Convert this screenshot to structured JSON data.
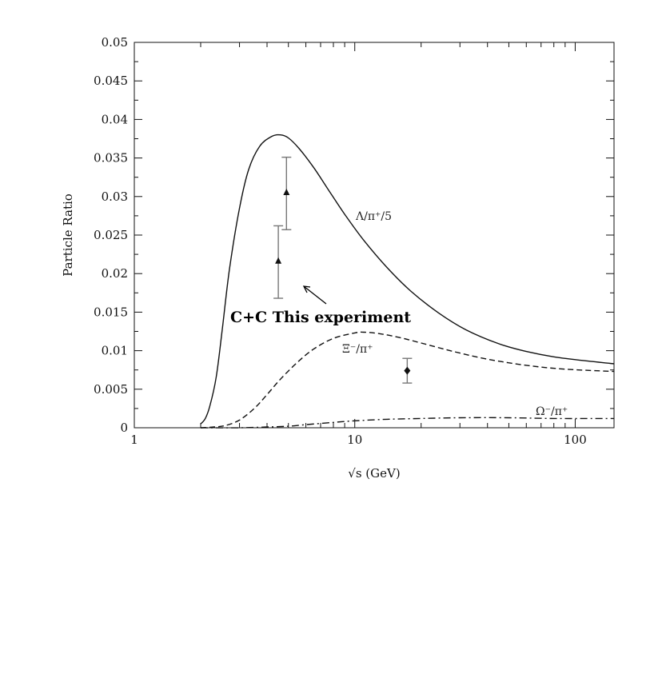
{
  "chart_data": {
    "type": "line",
    "title": "",
    "xlabel": "√s (GeV)",
    "ylabel": "Particle Ratio",
    "xscale": "log",
    "xlim": [
      1,
      150
    ],
    "ylim": [
      0,
      0.05
    ],
    "xticks": [
      {
        "value": 1,
        "label": "1"
      },
      {
        "value": 10,
        "label": "10"
      },
      {
        "value": 100,
        "label": "100"
      }
    ],
    "yticks": [
      {
        "value": 0,
        "label": "0"
      },
      {
        "value": 0.005,
        "label": "0.005"
      },
      {
        "value": 0.01,
        "label": "0.01"
      },
      {
        "value": 0.015,
        "label": "0.015"
      },
      {
        "value": 0.02,
        "label": "0.02"
      },
      {
        "value": 0.025,
        "label": "0.025"
      },
      {
        "value": 0.03,
        "label": "0.03"
      },
      {
        "value": 0.035,
        "label": "0.035"
      },
      {
        "value": 0.04,
        "label": "0.04"
      },
      {
        "value": 0.045,
        "label": "0.045"
      },
      {
        "value": 0.05,
        "label": "0.05"
      }
    ],
    "grid": false,
    "series": [
      {
        "name": "Λ/π⁺/5",
        "style": "solid",
        "x": [
          2.0,
          2.1,
          2.2,
          2.35,
          2.5,
          2.7,
          3.0,
          3.3,
          3.7,
          4.2,
          4.6,
          5.0,
          5.6,
          6.5,
          7.5,
          9,
          11,
          14,
          18,
          24,
          32,
          45,
          60,
          80,
          110,
          150
        ],
        "y": [
          0.0005,
          0.0012,
          0.0028,
          0.0065,
          0.0125,
          0.0205,
          0.0285,
          0.0335,
          0.0365,
          0.0378,
          0.038,
          0.0376,
          0.0362,
          0.0338,
          0.0311,
          0.0277,
          0.0243,
          0.0208,
          0.0177,
          0.0149,
          0.0127,
          0.0109,
          0.0099,
          0.0092,
          0.0087,
          0.0083
        ]
      },
      {
        "name": "Ξ⁻/π⁺",
        "style": "dashed",
        "x": [
          2.0,
          2.3,
          2.6,
          3.0,
          3.5,
          4.0,
          4.6,
          5.5,
          6.5,
          8,
          10,
          11,
          13,
          16,
          20,
          28,
          40,
          60,
          90,
          150
        ],
        "y": [
          0.0,
          0.0001,
          0.0003,
          0.001,
          0.0025,
          0.0043,
          0.0063,
          0.0085,
          0.0102,
          0.0116,
          0.0123,
          0.0124,
          0.0122,
          0.0117,
          0.011,
          0.0099,
          0.0089,
          0.0081,
          0.0076,
          0.0073
        ]
      },
      {
        "name": "Ω⁻/π⁺",
        "style": "dashdot",
        "x": [
          2.0,
          3.0,
          4.0,
          5.0,
          6.0,
          8,
          10,
          14,
          20,
          30,
          50,
          80,
          150
        ],
        "y": [
          0.0,
          0.0,
          0.0001,
          0.0002,
          0.0004,
          0.0007,
          0.0009,
          0.0011,
          0.0012,
          0.0013,
          0.0013,
          0.0012,
          0.0012
        ]
      }
    ],
    "data_points": [
      {
        "marker": "triangle",
        "x": 4.5,
        "y": 0.0216,
        "yerr_low": 0.0168,
        "yerr_high": 0.0262
      },
      {
        "marker": "triangle",
        "x": 4.9,
        "y": 0.0305,
        "yerr_low": 0.0257,
        "yerr_high": 0.0351
      },
      {
        "marker": "diamond",
        "x": 17.3,
        "y": 0.0074,
        "yerr_low": 0.0058,
        "yerr_high": 0.009
      }
    ],
    "annotation": {
      "text": "C+C This experiment"
    }
  }
}
